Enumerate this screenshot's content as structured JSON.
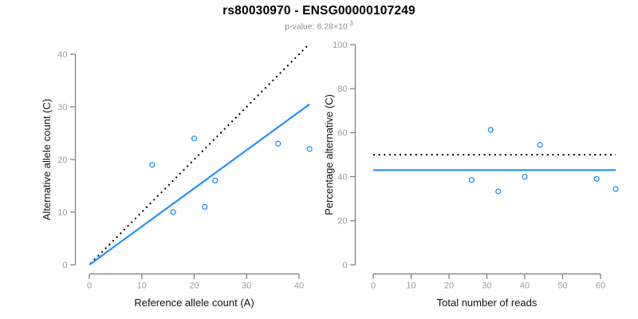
{
  "header": {
    "title": "rs80030970 - ENSG00000107249",
    "subtitle_prefix": "p-value: 6.28×10",
    "subtitle_exponent": "-3"
  },
  "colors": {
    "accent_blue": "#1E90FF",
    "line_black": "#000000",
    "axis_gray": "#7a7a7a",
    "tick_label_gray": "#9c9c9c",
    "axis_label_black": "#111111",
    "subtitle_gray": "#8c8c8c"
  },
  "chart_data": [
    {
      "type": "scatter",
      "name": "allele-counts-scatter",
      "title": "",
      "xlabel": "Reference allele count (A)",
      "ylabel": "Alternative allele count (C)",
      "xlim": [
        0,
        40
      ],
      "ylim": [
        0,
        40
      ],
      "xticks": [
        0,
        10,
        20,
        30,
        40
      ],
      "yticks": [
        0,
        10,
        20,
        30,
        40
      ],
      "grid": false,
      "legend": null,
      "points": [
        [
          12,
          19
        ],
        [
          16,
          10
        ],
        [
          20,
          24
        ],
        [
          22,
          11
        ],
        [
          24,
          16
        ],
        [
          36,
          23
        ],
        [
          42,
          22
        ]
      ],
      "lines": [
        {
          "name": "identity-line",
          "style": "dotted",
          "color": "#000000",
          "x": [
            0.2,
            41.8
          ],
          "y": [
            0.2,
            41.8
          ]
        },
        {
          "name": "regression-line",
          "style": "solid",
          "color": "#1E90FF",
          "x": [
            0,
            42
          ],
          "y": [
            0,
            30.5
          ]
        }
      ]
    },
    {
      "type": "scatter",
      "name": "percentage-vs-reads-scatter",
      "title": "",
      "xlabel": "Total number of reads",
      "ylabel": "Percentage alternative (C)",
      "xlim": [
        0,
        60
      ],
      "ylim": [
        0,
        100
      ],
      "xticks": [
        0,
        10,
        20,
        30,
        40,
        50,
        60
      ],
      "yticks": [
        0,
        20,
        40,
        60,
        80,
        100
      ],
      "grid": false,
      "legend": null,
      "points": [
        [
          26,
          38.5
        ],
        [
          31,
          61.3
        ],
        [
          33,
          33.3
        ],
        [
          40,
          40
        ],
        [
          44,
          54.5
        ],
        [
          59,
          39
        ],
        [
          64,
          34.4
        ]
      ],
      "lines": [
        {
          "name": "fifty-percent-line",
          "style": "dotted",
          "color": "#000000",
          "x": [
            0,
            64
          ],
          "y": [
            50,
            50
          ]
        },
        {
          "name": "mean-percentage-line",
          "style": "solid",
          "color": "#1E90FF",
          "x": [
            0,
            64
          ],
          "y": [
            43,
            43
          ]
        }
      ]
    }
  ]
}
